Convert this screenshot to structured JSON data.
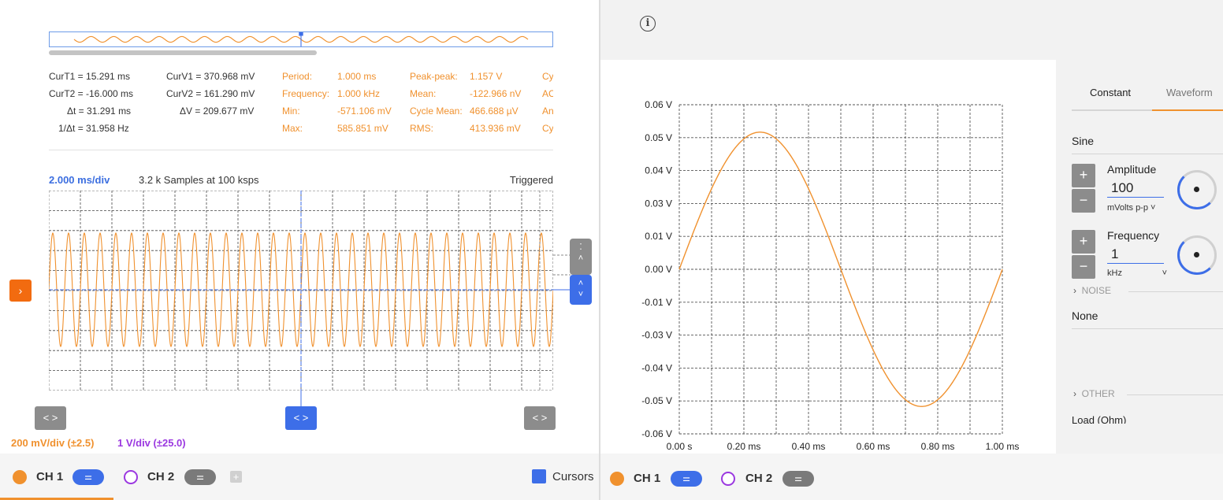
{
  "scope": {
    "cursor_meas": {
      "col1": [
        "CurT1 = 15.291 ms",
        "CurT2 = -16.000 ms",
        "Δt = 31.291 ms",
        "1/Δt = 31.958 Hz"
      ],
      "col2": [
        "CurV1 = 370.968 mV",
        "CurV2 = 161.290 mV",
        "ΔV = 209.677 mV"
      ]
    },
    "measurements": {
      "labels1": [
        "Period:",
        "Frequency:",
        "Min:",
        "Max:"
      ],
      "values1": [
        "1.000 ms",
        "1.000 kHz",
        "-571.106 mV",
        "585.851 mV"
      ],
      "labels2": [
        "Peak-peak:",
        "Mean:",
        "Cycle Mean:",
        "RMS:"
      ],
      "values2": [
        "1.157 V",
        "-122.966 nV",
        "466.688 µV",
        "413.936 mV"
      ],
      "cut": [
        "Cy",
        "AC",
        "An",
        "Cy"
      ]
    },
    "timebase": "2.000 ms/div",
    "samples": "3.2 k Samples at 100 ksps",
    "trigger_status": "Triggered",
    "ch1_scale": "200 mV/div (±2.5)",
    "ch2_scale": "1 V/div (±25.0)",
    "cursor_btn_label": "< >",
    "ch1_label": "CH 1",
    "ch2_label": "CH 2",
    "cursors_label": "Cursors",
    "colors": {
      "ch1": "#f0912e",
      "ch2": "#9b38e0",
      "accent": "#3d6ee8"
    }
  },
  "awg": {
    "y_ticks": [
      "0.06 V",
      "0.05 V",
      "0.04 V",
      "0.03 V",
      "0.01 V",
      "0.00 V",
      "-0.01 V",
      "-0.03 V",
      "-0.04 V",
      "-0.05 V",
      "-0.06 V"
    ],
    "x_ticks": [
      "0.00 s",
      "0.20 ms",
      "0.40 ms",
      "0.60 ms",
      "0.80 ms",
      "1.00 ms"
    ],
    "tabs": [
      "Constant",
      "Waveform"
    ],
    "waveform_type": "Sine",
    "amplitude_label": "Amplitude",
    "amplitude_value": "100",
    "amplitude_unit": "mVolts p-p",
    "frequency_label": "Frequency",
    "frequency_value": "1",
    "frequency_unit": "kHz",
    "noise_label": "NOISE",
    "noise_value": "None",
    "other_label": "OTHER",
    "load_label": "Load (Ohm)",
    "ch1_label": "CH 1",
    "ch2_label": "CH 2"
  },
  "chart_data": {
    "type": "line",
    "x": [
      0,
      0.05,
      0.1,
      0.15,
      0.2,
      0.25,
      0.3,
      0.35,
      0.4,
      0.45,
      0.5,
      0.55,
      0.6,
      0.65,
      0.7,
      0.75,
      0.8,
      0.85,
      0.9,
      0.95,
      1.0
    ],
    "series": [
      {
        "values": [
          0,
          0.0155,
          0.0294,
          0.0405,
          0.0476,
          0.05,
          0.0476,
          0.0405,
          0.0294,
          0.0155,
          0,
          -0.0155,
          -0.0294,
          -0.0405,
          -0.0476,
          -0.05,
          -0.0476,
          -0.0405,
          -0.0294,
          -0.0155,
          0
        ]
      }
    ],
    "xlabel": "",
    "ylabel": "",
    "xlim": [
      0,
      1.0
    ],
    "ylim": [
      -0.06,
      0.06
    ],
    "grid": true
  }
}
